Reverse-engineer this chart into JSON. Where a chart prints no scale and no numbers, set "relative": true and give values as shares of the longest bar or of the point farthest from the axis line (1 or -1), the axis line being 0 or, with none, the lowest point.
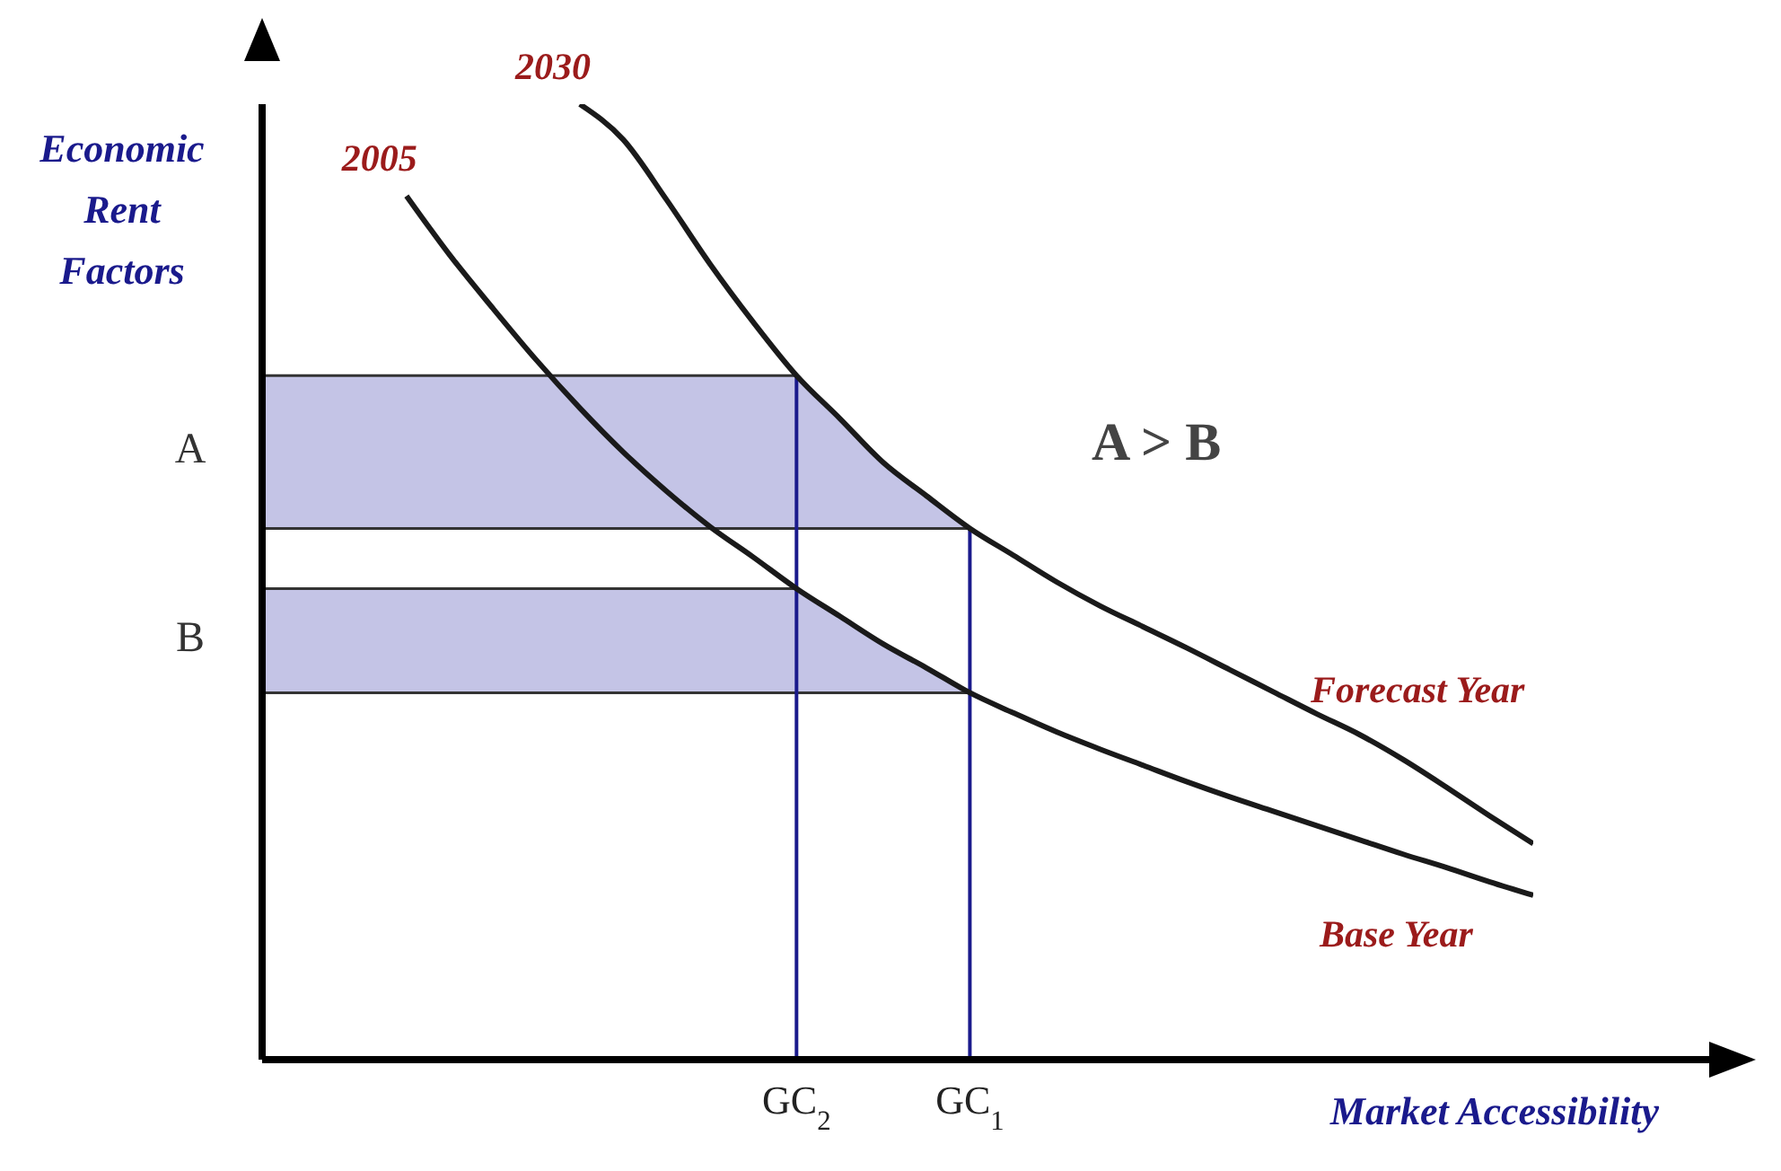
{
  "chart_data": {
    "type": "line",
    "relative": true,
    "xlabel": "Market Accessibility",
    "ylabel": "Economic Rent Factors",
    "categories": [
      null,
      null,
      null,
      null,
      null,
      null,
      null,
      null,
      null,
      null,
      null,
      null,
      "GC$_{2}$",
      null,
      null,
      null,
      "GC$_{1}$",
      null,
      null,
      null,
      null,
      null,
      null,
      null,
      null,
      null,
      null,
      null,
      null,
      null
    ],
    "marker": "none",
    "line_style": "solid",
    "series": [
      {
        "name": "2005",
        "color": "#1a1a1a",
        "values": [
          null,
          null,
          null,
          0.904,
          0.842,
          0.786,
          0.732,
          0.682,
          0.636,
          0.595,
          0.558,
          0.526,
          0.493,
          0.464,
          0.435,
          0.41,
          0.384,
          0.363,
          0.343,
          0.325,
          0.308,
          0.291,
          0.275,
          0.26,
          0.245,
          0.23,
          0.215,
          0.201,
          0.186,
          0.172
        ]
      },
      {
        "name": "2030",
        "color": "#1a1a1a",
        "values": [
          null,
          null,
          null,
          null,
          null,
          null,
          null,
          1,
          0.963,
          0.9,
          0.833,
          0.772,
          0.716,
          0.671,
          0.625,
          0.59,
          0.556,
          0.528,
          0.5,
          0.475,
          0.453,
          0.431,
          0.408,
          0.385,
          0.362,
          0.34,
          0.314,
          0.285,
          0.255,
          0.226
        ]
      }
    ],
    "bands": [
      {
        "axis": "y",
        "from": 0.556,
        "to": 0.716,
        "label": "A",
        "color": "#c4c4e6"
      },
      {
        "axis": "y",
        "from": 0.384,
        "to": 0.493,
        "label": "B",
        "color": "#c4c4e6"
      }
    ],
    "ref_lines": [
      {
        "axis": "x",
        "value": "GC$_{2}$",
        "color": "#1a1a8c"
      },
      {
        "axis": "x",
        "value": "GC$_{1}$",
        "color": "#1a1a8c"
      }
    ],
    "annotations": [
      "A > B",
      "Forecast Year",
      "Base Year"
    ]
  }
}
